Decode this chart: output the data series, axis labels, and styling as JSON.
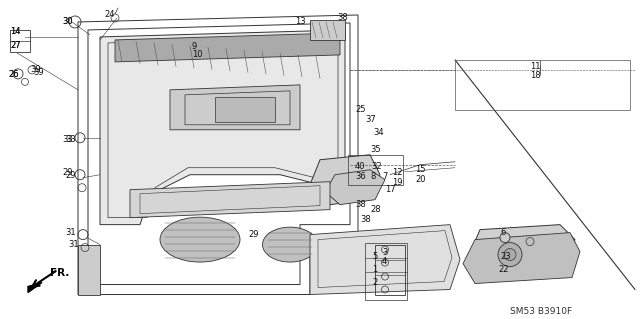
{
  "background_color": "#f5f5f0",
  "diagram_code": "SM53 B3910F",
  "fig_width": 6.4,
  "fig_height": 3.19,
  "dpi": 100
}
